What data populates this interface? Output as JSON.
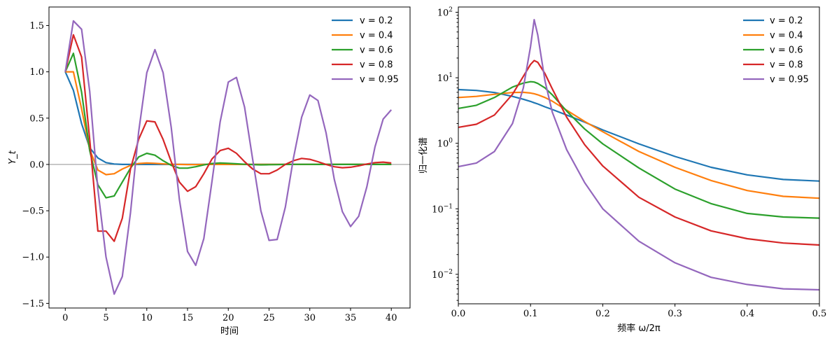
{
  "chart_data": [
    {
      "type": "line",
      "xlabel": "时间",
      "ylabel": "Y_t",
      "xlim": [
        -2,
        42.3
      ],
      "ylim": [
        -1.55,
        1.7
      ],
      "xticks": [
        0,
        5,
        10,
        15,
        20,
        25,
        30,
        35,
        40
      ],
      "xtick_labels": [
        "0",
        "5",
        "10",
        "15",
        "20",
        "25",
        "30",
        "35",
        "40"
      ],
      "yticks": [
        -1.5,
        -1.0,
        -0.5,
        0.0,
        0.5,
        1.0,
        1.5
      ],
      "ytick_labels": [
        "−1.5",
        "−1.0",
        "−0.5",
        "0.0",
        "0.5",
        "1.0",
        "1.5"
      ],
      "hline": 0,
      "legend": "top-right",
      "x": [
        0,
        1,
        2,
        3,
        4,
        5,
        6,
        7,
        8,
        9,
        10,
        11,
        12,
        13,
        14,
        15,
        16,
        17,
        18,
        19,
        20,
        21,
        22,
        23,
        24,
        25,
        26,
        27,
        28,
        29,
        30,
        31,
        32,
        33,
        34,
        35,
        36,
        37,
        38,
        39,
        40
      ],
      "series": [
        {
          "name": "v = 0.2",
          "color": "#1f77b4",
          "values": [
            1.0,
            0.8,
            0.44,
            0.18,
            0.07,
            0.02,
            0.005,
            0.0,
            0.0,
            0.0,
            0.0,
            0.0,
            0.0,
            0.0,
            0.0,
            0.0,
            0.0,
            0.0,
            0.0,
            0.0,
            0.0,
            0.0,
            0.0,
            0.0,
            0.0,
            0.0,
            0.0,
            0.0,
            0.0,
            0.0,
            0.0,
            0.0,
            0.0,
            0.0,
            0.0,
            0.0,
            0.0,
            0.0,
            0.0,
            0.0,
            0.0
          ]
        },
        {
          "name": "v = 0.4",
          "color": "#ff7f0e",
          "values": [
            1.0,
            1.0,
            0.6,
            0.16,
            -0.06,
            -0.11,
            -0.1,
            -0.05,
            -0.01,
            0.01,
            0.015,
            0.012,
            0.006,
            0.002,
            0.0,
            -0.001,
            -0.001,
            0.0,
            0.0,
            0.0,
            0.0,
            0.0,
            0.0,
            0.0,
            0.0,
            0.0,
            0.0,
            0.0,
            0.0,
            0.0,
            0.0,
            0.0,
            0.0,
            0.0,
            0.0,
            0.0,
            0.0,
            0.0,
            0.0,
            0.0,
            0.0
          ]
        },
        {
          "name": "v = 0.6",
          "color": "#2ca02c",
          "values": [
            1.0,
            1.2,
            0.78,
            0.15,
            -0.22,
            -0.36,
            -0.34,
            -0.19,
            -0.04,
            0.08,
            0.12,
            0.1,
            0.04,
            -0.01,
            -0.04,
            -0.04,
            -0.025,
            -0.005,
            0.01,
            0.015,
            0.012,
            0.007,
            0.002,
            -0.002,
            -0.004,
            -0.003,
            -0.002,
            0.0,
            0.001,
            0.001,
            0.001,
            0.0,
            0.0,
            0.0,
            0.0,
            0.0,
            0.0,
            0.0,
            0.0,
            0.0,
            0.0
          ]
        },
        {
          "name": "v = 0.8",
          "color": "#d62728",
          "values": [
            1.0,
            1.4,
            1.16,
            0.27,
            -0.72,
            -0.72,
            -0.83,
            -0.58,
            -0.05,
            0.27,
            0.47,
            0.46,
            0.27,
            0.03,
            -0.19,
            -0.29,
            -0.24,
            -0.1,
            0.06,
            0.15,
            0.175,
            0.12,
            0.03,
            -0.05,
            -0.1,
            -0.1,
            -0.06,
            0.0,
            0.04,
            0.065,
            0.055,
            0.03,
            0.0,
            -0.025,
            -0.035,
            -0.03,
            -0.015,
            0.005,
            0.02,
            0.025,
            0.015
          ]
        },
        {
          "name": "v = 0.95",
          "color": "#9467bd",
          "values": [
            1.0,
            1.55,
            1.46,
            0.79,
            -0.27,
            -1.0,
            -1.4,
            -1.21,
            -0.52,
            0.35,
            0.99,
            1.24,
            0.99,
            0.4,
            -0.38,
            -0.94,
            -1.09,
            -0.8,
            -0.18,
            0.46,
            0.89,
            0.94,
            0.62,
            0.05,
            -0.5,
            -0.82,
            -0.81,
            -0.46,
            0.07,
            0.51,
            0.75,
            0.69,
            0.34,
            -0.16,
            -0.51,
            -0.67,
            -0.56,
            -0.24,
            0.19,
            0.49,
            0.59
          ]
        }
      ]
    },
    {
      "type": "line",
      "xlabel": "频率 ω/2π",
      "ylabel": "归一化谱",
      "xlim": [
        0.0,
        0.5
      ],
      "ylim_log10": [
        -2.45,
        2.08
      ],
      "yscale": "log",
      "xticks": [
        0.0,
        0.1,
        0.2,
        0.3,
        0.4,
        0.5
      ],
      "xtick_labels": [
        "0.0",
        "0.1",
        "0.2",
        "0.3",
        "0.4",
        "0.5"
      ],
      "ytick_exponents": [
        -2,
        -1,
        0,
        1,
        2
      ],
      "ytick_base": "10",
      "legend": "top-right",
      "x": [
        0.0,
        0.025,
        0.05,
        0.075,
        0.09,
        0.1,
        0.105,
        0.11,
        0.12,
        0.13,
        0.15,
        0.175,
        0.2,
        0.25,
        0.3,
        0.35,
        0.4,
        0.45,
        0.5
      ],
      "series": [
        {
          "name": "v = 0.2",
          "color": "#1f77b4",
          "values": [
            6.6,
            6.4,
            5.95,
            5.2,
            4.7,
            4.35,
            4.15,
            3.98,
            3.6,
            3.28,
            2.7,
            2.1,
            1.6,
            0.98,
            0.63,
            0.43,
            0.33,
            0.28,
            0.265
          ]
        },
        {
          "name": "v = 0.4",
          "color": "#ff7f0e",
          "values": [
            5.0,
            5.2,
            5.6,
            5.95,
            6.0,
            5.85,
            5.7,
            5.5,
            5.0,
            4.4,
            3.2,
            2.15,
            1.5,
            0.75,
            0.43,
            0.27,
            0.19,
            0.155,
            0.145
          ]
        },
        {
          "name": "v = 0.6",
          "color": "#2ca02c",
          "values": [
            3.4,
            3.8,
            5.0,
            7.2,
            8.3,
            8.7,
            8.6,
            8.2,
            7.0,
            5.5,
            3.1,
            1.65,
            0.98,
            0.42,
            0.2,
            0.12,
            0.085,
            0.075,
            0.072
          ]
        },
        {
          "name": "v = 0.8",
          "color": "#d62728",
          "values": [
            1.75,
            1.95,
            2.7,
            5.6,
            10.5,
            16.0,
            18.3,
            17.2,
            11.6,
            6.8,
            2.5,
            0.95,
            0.45,
            0.15,
            0.075,
            0.046,
            0.035,
            0.03,
            0.028
          ]
        },
        {
          "name": "v = 0.95",
          "color": "#9467bd",
          "values": [
            0.44,
            0.5,
            0.75,
            2.0,
            7.0,
            30.0,
            77.0,
            45.0,
            9.0,
            3.0,
            0.8,
            0.25,
            0.1,
            0.032,
            0.015,
            0.009,
            0.007,
            0.006,
            0.0058
          ]
        }
      ]
    }
  ]
}
